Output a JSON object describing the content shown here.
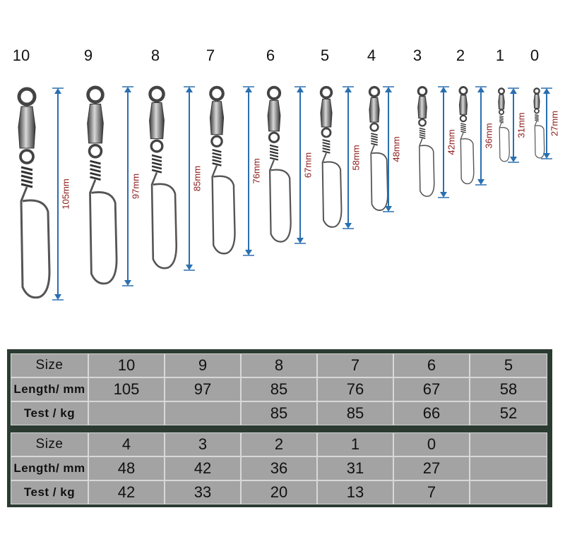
{
  "items": [
    {
      "size": "10",
      "length": "105mm"
    },
    {
      "size": "9",
      "length": "97mm"
    },
    {
      "size": "8",
      "length": "85mm"
    },
    {
      "size": "7",
      "length": "76mm"
    },
    {
      "size": "6",
      "length": "67mm"
    },
    {
      "size": "5",
      "length": "58mm"
    },
    {
      "size": "4",
      "length": "48mm"
    },
    {
      "size": "3",
      "length": "42mm"
    },
    {
      "size": "2",
      "length": "36mm"
    },
    {
      "size": "1",
      "length": "31mm"
    },
    {
      "size": "0",
      "length": "27mm"
    }
  ],
  "tables": [
    {
      "rows": [
        [
          "Size",
          10,
          9,
          8,
          7,
          6,
          5
        ],
        [
          "Length/ mm",
          105,
          97,
          85,
          76,
          67,
          58
        ],
        [
          "Test  / kg",
          null,
          null,
          85,
          85,
          66,
          52
        ]
      ]
    },
    {
      "rows": [
        [
          "Size",
          4,
          3,
          2,
          1,
          0,
          null
        ],
        [
          "Length/ mm",
          48,
          42,
          36,
          31,
          27,
          null
        ],
        [
          "Test  / kg",
          42,
          33,
          20,
          13,
          7,
          null
        ]
      ]
    }
  ]
}
